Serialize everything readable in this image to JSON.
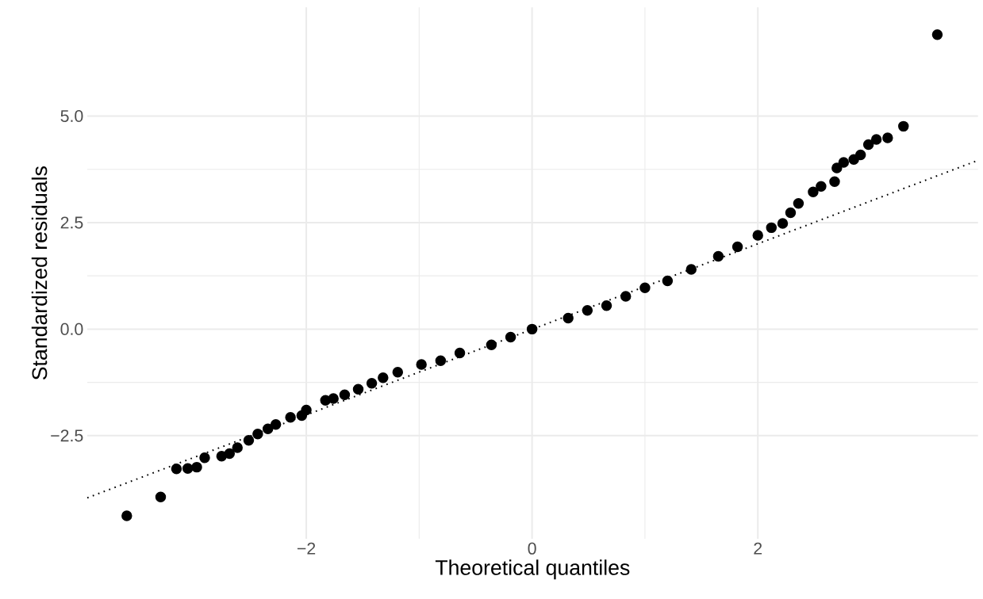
{
  "chart_data": {
    "type": "scatter",
    "xlabel": "Theoretical quantiles",
    "ylabel": "Standardized residuals",
    "xlim": [
      -3.94,
      3.95
    ],
    "ylim": [
      -4.92,
      7.55
    ],
    "xticks": [
      {
        "value": -2,
        "label": "−2"
      },
      0,
      2
    ],
    "yticks": [
      {
        "value": -2.5,
        "label": "−2.5"
      },
      {
        "value": 0,
        "label": "0.0"
      },
      {
        "value": 2.5,
        "label": "2.5"
      },
      {
        "value": 5,
        "label": "5.0"
      }
    ],
    "grid": true,
    "series": [
      {
        "type": "line",
        "color": "#000000",
        "marker": "none",
        "line_style": "dotted",
        "x": [
          -3.94,
          3.95
        ],
        "values": [
          -3.96,
          3.96
        ]
      },
      {
        "color": "#000000",
        "marker": "circle",
        "x": [
          -3.59,
          -3.29,
          -3.15,
          -3.05,
          -2.97,
          -2.9,
          -2.75,
          -2.68,
          -2.61,
          -2.51,
          -2.43,
          -2.34,
          -2.27,
          -2.14,
          -2.04,
          -2.0,
          -1.83,
          -1.76,
          -1.66,
          -1.54,
          -1.42,
          -1.32,
          -1.19,
          -0.98,
          -0.81,
          -0.64,
          -0.36,
          -0.19,
          0,
          0.32,
          0.49,
          0.66,
          0.83,
          1.0,
          1.2,
          1.41,
          1.65,
          1.82,
          2.0,
          2.12,
          2.22,
          2.29,
          2.36,
          2.49,
          2.56,
          2.68,
          2.7,
          2.76,
          2.85,
          2.91,
          2.98,
          3.05,
          3.15,
          3.29,
          3.59
        ],
        "values": [
          -4.38,
          -3.94,
          -3.28,
          -3.27,
          -3.24,
          -3.02,
          -2.98,
          -2.92,
          -2.78,
          -2.61,
          -2.46,
          -2.34,
          -2.24,
          -2.07,
          -2.03,
          -1.9,
          -1.67,
          -1.63,
          -1.54,
          -1.41,
          -1.27,
          -1.14,
          -1.01,
          -0.83,
          -0.74,
          -0.56,
          -0.37,
          -0.19,
          0,
          0.26,
          0.44,
          0.55,
          0.77,
          0.97,
          1.13,
          1.4,
          1.71,
          1.93,
          2.2,
          2.38,
          2.48,
          2.73,
          2.95,
          3.22,
          3.35,
          3.46,
          3.78,
          3.91,
          3.98,
          4.09,
          4.33,
          4.45,
          4.49,
          4.76,
          6.91
        ]
      }
    ]
  }
}
